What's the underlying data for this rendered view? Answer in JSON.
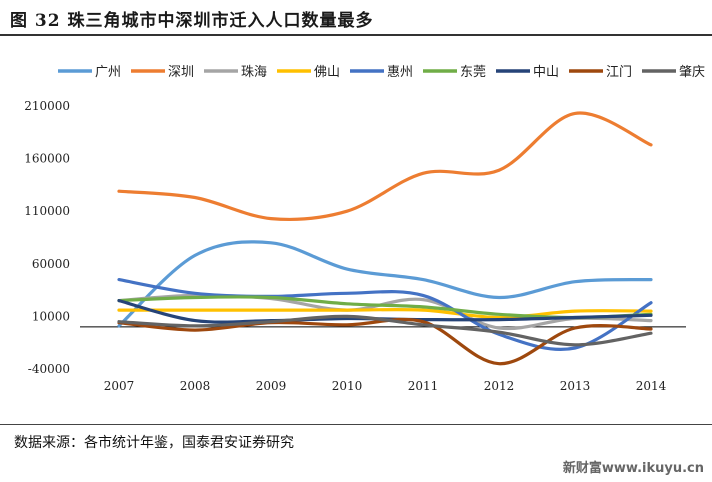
{
  "title": "图 32  珠三角城市中深圳市迁入人口数量最多",
  "source": "数据来源：各市统计年鉴，国泰君安证券研究",
  "watermark": "新财富www.ikuyu.cn",
  "chart_data": {
    "type": "line",
    "x": [
      "2007",
      "2008",
      "2009",
      "2010",
      "2011",
      "2012",
      "2013",
      "2014"
    ],
    "ylim": [
      -40000,
      210000
    ],
    "yticks": [
      -40000,
      10000,
      60000,
      110000,
      160000,
      210000
    ],
    "legend_position": "top",
    "grid": false,
    "series": [
      {
        "name": "广州",
        "color": "#5b9bd5",
        "values": [
          1000,
          68000,
          80000,
          55000,
          45000,
          28000,
          43000,
          45000
        ]
      },
      {
        "name": "深圳",
        "color": "#ed7d31",
        "values": [
          129000,
          123000,
          103000,
          110000,
          146000,
          149000,
          203000,
          173000
        ]
      },
      {
        "name": "珠海",
        "color": "#a5a5a5",
        "values": [
          25000,
          30000,
          27000,
          16000,
          26000,
          -1000,
          8000,
          6000
        ]
      },
      {
        "name": "佛山",
        "color": "#ffc000",
        "values": [
          16000,
          16000,
          16000,
          16000,
          16000,
          9000,
          15000,
          15000
        ]
      },
      {
        "name": "惠州",
        "color": "#4472c4",
        "values": [
          45000,
          32000,
          29000,
          32000,
          30000,
          -7000,
          -20000,
          23000
        ]
      },
      {
        "name": "东莞",
        "color": "#70ad47",
        "values": [
          25000,
          28000,
          28000,
          22000,
          19000,
          12000,
          9000,
          12000
        ]
      },
      {
        "name": "中山",
        "color": "#264478",
        "values": [
          25000,
          6000,
          6000,
          8000,
          7000,
          7000,
          9000,
          11000
        ]
      },
      {
        "name": "江门",
        "color": "#9e480e",
        "values": [
          4000,
          -3000,
          4000,
          2000,
          5000,
          -35000,
          -1000,
          -2000
        ]
      },
      {
        "name": "肇庆",
        "color": "#636363",
        "values": [
          5000,
          1000,
          5000,
          10000,
          2000,
          -5000,
          -17000,
          -6000
        ]
      }
    ]
  }
}
